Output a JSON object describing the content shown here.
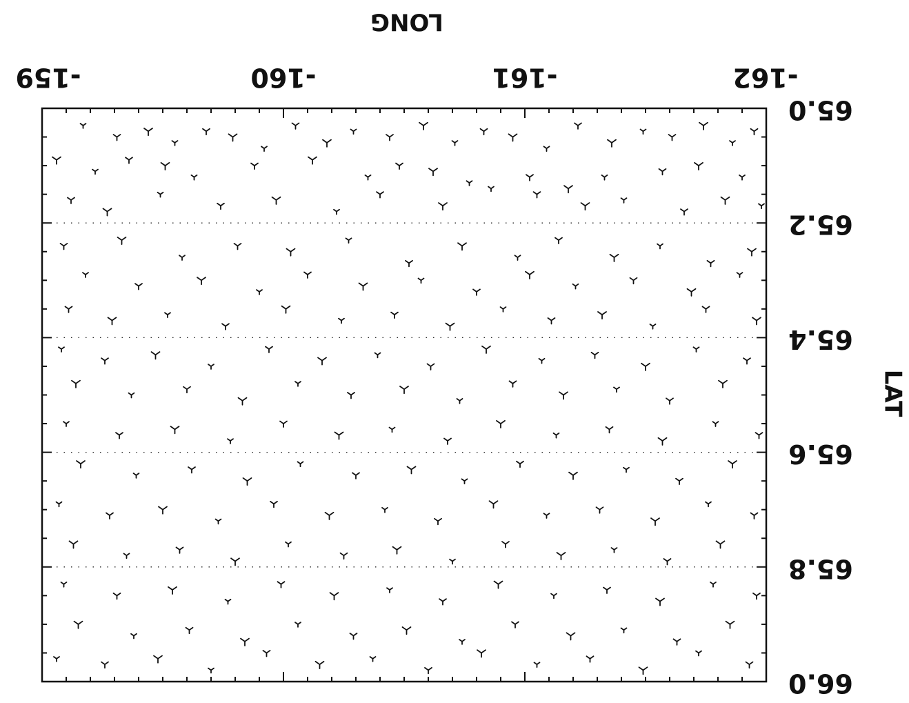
{
  "chart_data": {
    "type": "scatter",
    "orientation": "rotated-180",
    "xlabel": "LONG",
    "ylabel": "LAT",
    "x_ticks": [
      "-159",
      "-160",
      "-161",
      "-162"
    ],
    "x_tick_values": [
      -159,
      -160,
      -161,
      -162
    ],
    "y_ticks": [
      "65.0",
      "65.2",
      "65.4",
      "65.6",
      "65.8",
      "66.0"
    ],
    "y_tick_values": [
      65.0,
      65.2,
      65.4,
      65.6,
      65.8,
      66.0
    ],
    "xlim": [
      -159,
      -162
    ],
    "ylim": [
      65.0,
      66.0
    ],
    "grid": "dotted-horizontal",
    "marker": "inverted-y-wind-barb",
    "marker_color": "#111111",
    "point_count_approx": 900,
    "points": [
      [
        -159.17,
        65.03
      ],
      [
        -159.31,
        65.05
      ],
      [
        -159.44,
        65.04
      ],
      [
        -159.55,
        65.06
      ],
      [
        -159.68,
        65.04
      ],
      [
        -159.79,
        65.05
      ],
      [
        -159.92,
        65.07
      ],
      [
        -160.05,
        65.03
      ],
      [
        -160.18,
        65.06
      ],
      [
        -160.29,
        65.04
      ],
      [
        -160.44,
        65.05
      ],
      [
        -160.58,
        65.03
      ],
      [
        -160.71,
        65.06
      ],
      [
        -160.83,
        65.04
      ],
      [
        -160.95,
        65.05
      ],
      [
        -161.09,
        65.07
      ],
      [
        -161.22,
        65.03
      ],
      [
        -161.36,
        65.06
      ],
      [
        -161.49,
        65.04
      ],
      [
        -161.61,
        65.05
      ],
      [
        -161.74,
        65.03
      ],
      [
        -161.86,
        65.06
      ],
      [
        -161.95,
        65.04
      ],
      [
        -159.06,
        65.09
      ],
      [
        -159.22,
        65.11
      ],
      [
        -159.36,
        65.09
      ],
      [
        -159.51,
        65.1
      ],
      [
        -159.63,
        65.12
      ],
      [
        -159.88,
        65.1
      ],
      [
        -160.12,
        65.09
      ],
      [
        -160.35,
        65.12
      ],
      [
        -160.48,
        65.1
      ],
      [
        -160.62,
        65.11
      ],
      [
        -160.77,
        65.13
      ],
      [
        -161.02,
        65.12
      ],
      [
        -161.18,
        65.14
      ],
      [
        -161.33,
        65.12
      ],
      [
        -161.57,
        65.11
      ],
      [
        -161.72,
        65.1
      ],
      [
        -161.9,
        65.12
      ],
      [
        -159.12,
        65.16
      ],
      [
        -159.27,
        65.18
      ],
      [
        -159.49,
        65.15
      ],
      [
        -159.74,
        65.17
      ],
      [
        -159.97,
        65.16
      ],
      [
        -160.22,
        65.18
      ],
      [
        -160.4,
        65.15
      ],
      [
        -160.66,
        65.17
      ],
      [
        -160.86,
        65.14
      ],
      [
        -161.05,
        65.15
      ],
      [
        -161.25,
        65.17
      ],
      [
        -161.41,
        65.16
      ],
      [
        -161.66,
        65.18
      ],
      [
        -161.83,
        65.16
      ],
      [
        -161.98,
        65.17
      ],
      [
        -159.09,
        65.24
      ],
      [
        -159.33,
        65.23
      ],
      [
        -159.58,
        65.26
      ],
      [
        -159.81,
        65.24
      ],
      [
        -160.03,
        65.25
      ],
      [
        -160.27,
        65.23
      ],
      [
        -160.52,
        65.27
      ],
      [
        -160.74,
        65.24
      ],
      [
        -160.97,
        65.26
      ],
      [
        -161.14,
        65.23
      ],
      [
        -161.37,
        65.26
      ],
      [
        -161.56,
        65.24
      ],
      [
        -161.77,
        65.27
      ],
      [
        -161.94,
        65.25
      ],
      [
        -159.18,
        65.29
      ],
      [
        -159.4,
        65.31
      ],
      [
        -159.66,
        65.3
      ],
      [
        -159.9,
        65.32
      ],
      [
        -160.1,
        65.29
      ],
      [
        -160.33,
        65.31
      ],
      [
        -160.57,
        65.3
      ],
      [
        -160.8,
        65.32
      ],
      [
        -161.02,
        65.29
      ],
      [
        -161.21,
        65.31
      ],
      [
        -161.45,
        65.3
      ],
      [
        -161.69,
        65.32
      ],
      [
        -161.89,
        65.29
      ],
      [
        -159.11,
        65.35
      ],
      [
        -159.29,
        65.37
      ],
      [
        -159.52,
        65.36
      ],
      [
        -159.76,
        65.38
      ],
      [
        -160.01,
        65.35
      ],
      [
        -160.24,
        65.37
      ],
      [
        -160.46,
        65.36
      ],
      [
        -160.69,
        65.38
      ],
      [
        -160.91,
        65.35
      ],
      [
        -161.11,
        65.37
      ],
      [
        -161.32,
        65.36
      ],
      [
        -161.53,
        65.38
      ],
      [
        -161.75,
        65.35
      ],
      [
        -161.96,
        65.37
      ],
      [
        -159.08,
        65.42
      ],
      [
        -159.26,
        65.44
      ],
      [
        -159.47,
        65.43
      ],
      [
        -159.7,
        65.45
      ],
      [
        -159.94,
        65.42
      ],
      [
        -160.16,
        65.44
      ],
      [
        -160.39,
        65.43
      ],
      [
        -160.61,
        65.45
      ],
      [
        -160.84,
        65.42
      ],
      [
        -161.07,
        65.44
      ],
      [
        -161.29,
        65.43
      ],
      [
        -161.5,
        65.45
      ],
      [
        -161.71,
        65.42
      ],
      [
        -161.92,
        65.44
      ],
      [
        -159.14,
        65.48
      ],
      [
        -159.37,
        65.5
      ],
      [
        -159.6,
        65.49
      ],
      [
        -159.83,
        65.51
      ],
      [
        -160.06,
        65.48
      ],
      [
        -160.28,
        65.5
      ],
      [
        -160.5,
        65.49
      ],
      [
        -160.73,
        65.51
      ],
      [
        -160.95,
        65.48
      ],
      [
        -161.16,
        65.5
      ],
      [
        -161.38,
        65.49
      ],
      [
        -161.6,
        65.51
      ],
      [
        -161.82,
        65.48
      ],
      [
        -159.1,
        65.55
      ],
      [
        -159.32,
        65.57
      ],
      [
        -159.55,
        65.56
      ],
      [
        -159.78,
        65.58
      ],
      [
        -160.0,
        65.55
      ],
      [
        -160.23,
        65.57
      ],
      [
        -160.45,
        65.56
      ],
      [
        -160.68,
        65.58
      ],
      [
        -160.9,
        65.55
      ],
      [
        -161.13,
        65.57
      ],
      [
        -161.35,
        65.56
      ],
      [
        -161.57,
        65.58
      ],
      [
        -161.79,
        65.55
      ],
      [
        -161.97,
        65.57
      ],
      [
        -159.16,
        65.62
      ],
      [
        -159.39,
        65.64
      ],
      [
        -159.62,
        65.63
      ],
      [
        -159.85,
        65.65
      ],
      [
        -160.07,
        65.62
      ],
      [
        -160.3,
        65.64
      ],
      [
        -160.53,
        65.63
      ],
      [
        -160.75,
        65.65
      ],
      [
        -160.98,
        65.62
      ],
      [
        -161.2,
        65.64
      ],
      [
        -161.42,
        65.63
      ],
      [
        -161.64,
        65.65
      ],
      [
        -161.86,
        65.62
      ],
      [
        -159.07,
        65.69
      ],
      [
        -159.28,
        65.71
      ],
      [
        -159.5,
        65.7
      ],
      [
        -159.73,
        65.72
      ],
      [
        -159.96,
        65.69
      ],
      [
        -160.19,
        65.71
      ],
      [
        -160.42,
        65.7
      ],
      [
        -160.64,
        65.72
      ],
      [
        -160.87,
        65.69
      ],
      [
        -161.09,
        65.71
      ],
      [
        -161.31,
        65.7
      ],
      [
        -161.54,
        65.72
      ],
      [
        -161.76,
        65.69
      ],
      [
        -161.95,
        65.71
      ],
      [
        -159.13,
        65.76
      ],
      [
        -159.35,
        65.78
      ],
      [
        -159.57,
        65.77
      ],
      [
        -159.8,
        65.79
      ],
      [
        -160.02,
        65.76
      ],
      [
        -160.25,
        65.78
      ],
      [
        -160.47,
        65.77
      ],
      [
        -160.7,
        65.79
      ],
      [
        -160.92,
        65.76
      ],
      [
        -161.15,
        65.78
      ],
      [
        -161.37,
        65.77
      ],
      [
        -161.59,
        65.79
      ],
      [
        -161.81,
        65.76
      ],
      [
        -159.09,
        65.83
      ],
      [
        -159.31,
        65.85
      ],
      [
        -159.54,
        65.84
      ],
      [
        -159.77,
        65.86
      ],
      [
        -159.99,
        65.83
      ],
      [
        -160.21,
        65.85
      ],
      [
        -160.44,
        65.84
      ],
      [
        -160.66,
        65.86
      ],
      [
        -160.89,
        65.83
      ],
      [
        -161.12,
        65.85
      ],
      [
        -161.34,
        65.84
      ],
      [
        -161.56,
        65.86
      ],
      [
        -161.78,
        65.83
      ],
      [
        -161.96,
        65.85
      ],
      [
        -159.15,
        65.9
      ],
      [
        -159.38,
        65.92
      ],
      [
        -159.61,
        65.91
      ],
      [
        -159.84,
        65.93
      ],
      [
        -160.06,
        65.9
      ],
      [
        -160.29,
        65.92
      ],
      [
        -160.51,
        65.91
      ],
      [
        -160.74,
        65.93
      ],
      [
        -160.96,
        65.9
      ],
      [
        -161.19,
        65.92
      ],
      [
        -161.41,
        65.91
      ],
      [
        -161.63,
        65.93
      ],
      [
        -161.85,
        65.9
      ],
      [
        -159.06,
        65.96
      ],
      [
        -159.26,
        65.97
      ],
      [
        -159.48,
        65.96
      ],
      [
        -159.7,
        65.98
      ],
      [
        -159.93,
        65.95
      ],
      [
        -160.15,
        65.97
      ],
      [
        -160.37,
        65.96
      ],
      [
        -160.6,
        65.98
      ],
      [
        -160.82,
        65.95
      ],
      [
        -161.05,
        65.97
      ],
      [
        -161.27,
        65.96
      ],
      [
        -161.49,
        65.98
      ],
      [
        -161.72,
        65.95
      ],
      [
        -161.93,
        65.97
      ]
    ]
  }
}
